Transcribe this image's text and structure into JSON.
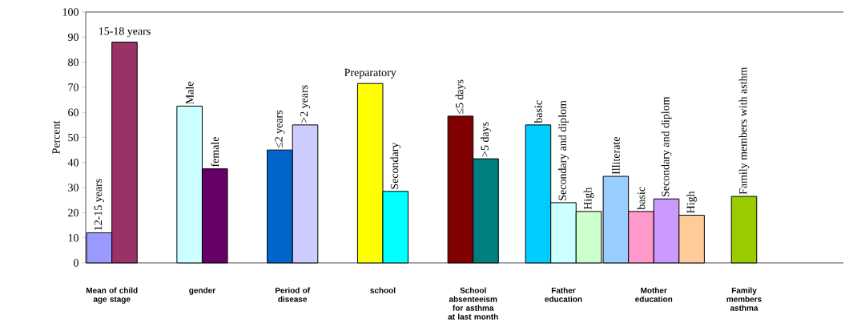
{
  "chart_data": {
    "type": "bar",
    "ylabel": "Percent",
    "categories": [
      "Mean of child age stage",
      "gender",
      "Period of disease",
      "school",
      "School absenteeism for asthma at last month",
      "Father education",
      "Mother education",
      "Family members asthma"
    ],
    "series": [
      {
        "colors": [
          "#9999ff",
          "#ccffff",
          "#0066cc",
          "#ffff00",
          "#800000",
          "#00ccff",
          "#99ccff",
          "#99cc00"
        ],
        "values": [
          12,
          62.5,
          45,
          71.5,
          58.5,
          55,
          34.5,
          26.5
        ]
      },
      {
        "colors": [
          "#993366",
          "#660066",
          "#ccccff",
          "#00ffff",
          "#008080",
          "#ccffff",
          "#ff99cc",
          null
        ],
        "values": [
          88,
          37.5,
          55,
          28.5,
          41.5,
          24,
          20.5,
          null
        ]
      },
      {
        "colors": [
          null,
          null,
          null,
          null,
          null,
          "#ccffcc",
          "#cc99ff",
          null
        ],
        "values": [
          null,
          null,
          null,
          null,
          null,
          20.5,
          25.5,
          null
        ]
      },
      {
        "colors": [
          null,
          null,
          null,
          null,
          null,
          null,
          "#ffcc99",
          null
        ],
        "values": [
          null,
          null,
          null,
          null,
          null,
          null,
          19,
          null
        ]
      }
    ],
    "ylim": [
      0,
      100
    ],
    "yticks": [
      0,
      10,
      20,
      30,
      40,
      50,
      60,
      70,
      80,
      90,
      100
    ],
    "annotations": [
      "12-15 years",
      "15-18 years",
      "Male",
      "female",
      "≤2 years",
      ">2 years",
      "Preparatory",
      "Secondary",
      "≤5 days",
      ">5 days",
      "basic",
      "Secondary and diplom",
      "High",
      "Illiterate",
      "basic",
      "Secondary and diplom",
      "High",
      "Family members with asthm"
    ]
  }
}
